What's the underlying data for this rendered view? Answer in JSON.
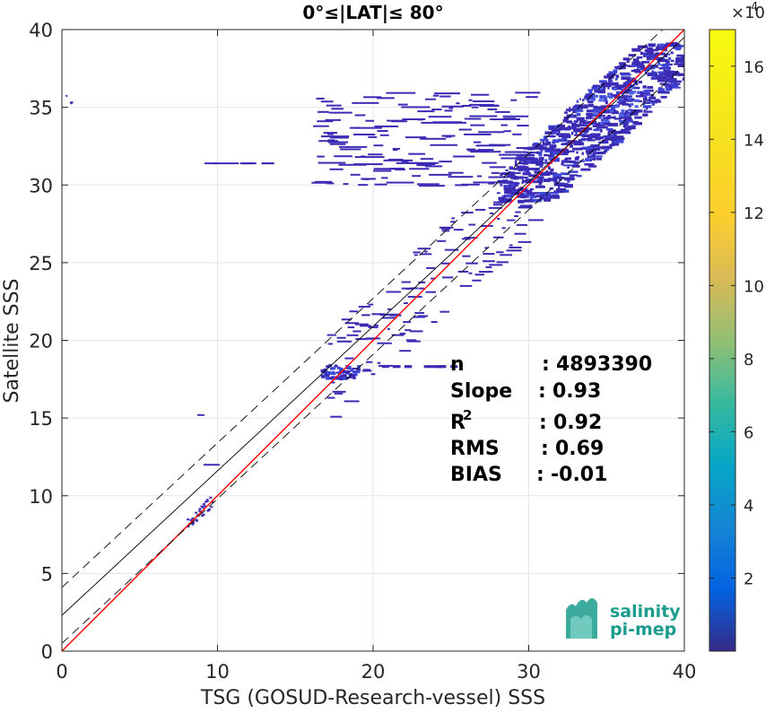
{
  "chart_data": {
    "type": "scatter",
    "subtype": "density-scatter (2D histogram)",
    "title": "0°≤|LAT|≤ 80°",
    "xlabel": "TSG (GOSUD-Research-vessel) SSS",
    "ylabel": "Satellite SSS",
    "xlim": [
      0,
      40
    ],
    "ylim": [
      0,
      40
    ],
    "xticks": [
      "0",
      "10",
      "20",
      "30",
      "40"
    ],
    "yticks": [
      "0",
      "5",
      "10",
      "15",
      "20",
      "25",
      "30",
      "35",
      "40"
    ],
    "grid": true,
    "lines": [
      {
        "name": "identity",
        "color": "#ff0000",
        "style": "solid",
        "slope": 1.0,
        "intercept": 0.0
      },
      {
        "name": "regression",
        "color": "#000000",
        "style": "solid",
        "slope": 0.93,
        "intercept": 2.3
      },
      {
        "name": "regression + spread",
        "color": "#000000",
        "style": "dashed",
        "slope": 0.93,
        "intercept": 4.1
      },
      {
        "name": "regression - spread",
        "color": "#000000",
        "style": "dashed",
        "slope": 0.93,
        "intercept": 0.5
      }
    ],
    "density_regions": [
      {
        "x": [
          28,
          40
        ],
        "y": [
          30,
          39
        ],
        "level": 0.03
      },
      {
        "x": [
          16.5,
          19
        ],
        "y": [
          17.5,
          18.5
        ],
        "level": 0.02
      },
      {
        "x": [
          21,
          25
        ],
        "y": [
          18.2,
          18.5
        ],
        "level": 0.01
      },
      {
        "x": [
          8,
          9.5
        ],
        "y": [
          8,
          9
        ],
        "level": 0.01
      },
      {
        "x": [
          8.8,
          10.5
        ],
        "y": [
          12,
          12
        ],
        "level": 0.01
      },
      {
        "x": [
          8.8,
          13
        ],
        "y": [
          31.3,
          31.5
        ],
        "level": 0.01
      },
      {
        "x": [
          17,
          40
        ],
        "y": [
          18,
          40
        ],
        "level": 0.01
      }
    ],
    "colorbar": {
      "colormap": "parula",
      "min": 0,
      "max": 170000,
      "ticks": [
        "2",
        "4",
        "6",
        "8",
        "10",
        "12",
        "14",
        "16"
      ],
      "tick_values": [
        20000,
        40000,
        60000,
        80000,
        100000,
        120000,
        140000,
        160000
      ],
      "multiplier": "×10",
      "exponent": "4"
    },
    "stats": [
      {
        "label": "n",
        "sep": ":",
        "value": "4893390"
      },
      {
        "label": "Slope",
        "sep": ":",
        "value": "0.93"
      },
      {
        "label": "R",
        "sup": "2",
        "sep": ":",
        "value": "0.92"
      },
      {
        "label": "RMS",
        "sep": ":",
        "value": "0.69"
      },
      {
        "label": "BIAS",
        "sep": ":",
        "value": "-0.01"
      }
    ]
  },
  "logo": {
    "line1": "salinity",
    "line2": "pi-mep",
    "color": "#1a9c8c"
  }
}
